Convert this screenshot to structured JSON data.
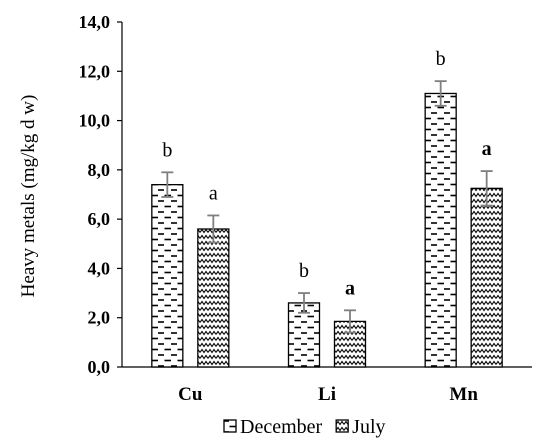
{
  "chart_data": {
    "type": "bar",
    "title": "",
    "xlabel": "",
    "ylabel": "Heavy metals (mg/kg d w)",
    "categories": [
      "Cu",
      "Li",
      "Mn"
    ],
    "ylim": [
      0,
      14
    ],
    "yticks": [
      "0,0",
      "2,0",
      "4,0",
      "6,0",
      "8,0",
      "10,0",
      "12,0",
      "14,0"
    ],
    "grid": false,
    "legend_position": "bottom",
    "series": [
      {
        "name": "December",
        "pattern": "dashes",
        "values": [
          7.4,
          2.6,
          11.1
        ],
        "errors": [
          0.5,
          0.4,
          0.5
        ],
        "letters": [
          "b",
          "b",
          "b"
        ]
      },
      {
        "name": "July",
        "pattern": "zigzag",
        "values": [
          5.6,
          1.85,
          7.25
        ],
        "errors": [
          0.55,
          0.45,
          0.7
        ],
        "letters": [
          "a",
          "a",
          "a"
        ],
        "letters_bold": [
          false,
          true,
          true
        ]
      }
    ],
    "colors": {
      "bar_fill": "#ffffff",
      "bar_stroke": "#000000",
      "error_bar": "#7f7f7f",
      "axis": "#000000"
    }
  }
}
